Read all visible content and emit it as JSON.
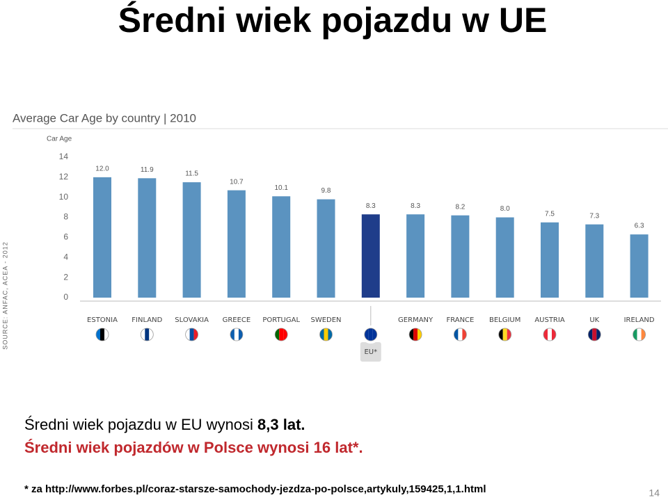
{
  "slide_title": "Średni wiek pojazdu w UE",
  "chart_data": {
    "type": "bar",
    "title": "Average Car Age by country | 2010",
    "y_label": "Car Age",
    "source": "SOURCE: ANFAC, ACEA - 2012",
    "categories": [
      "ESTONIA",
      "FINLAND",
      "SLOVAKIA",
      "GREECE",
      "PORTUGAL",
      "SWEDEN",
      "EU*",
      "GERMANY",
      "FRANCE",
      "BELGIUM",
      "AUSTRIA",
      "UK",
      "IRELAND"
    ],
    "values": [
      12.0,
      11.9,
      11.5,
      10.7,
      10.1,
      9.8,
      8.3,
      8.3,
      8.2,
      8.0,
      7.5,
      7.3,
      6.3
    ],
    "value_labels": [
      "12.0",
      "11.9",
      "11.5",
      "10.7",
      "10.1",
      "9.8",
      "8.3",
      "8.3",
      "8.2",
      "8.0",
      "7.5",
      "7.3",
      "6.3"
    ],
    "colors": [
      "#5b93c0",
      "#5b93c0",
      "#5b93c0",
      "#5b93c0",
      "#5b93c0",
      "#5b93c0",
      "#1f3d8a",
      "#5b93c0",
      "#5b93c0",
      "#5b93c0",
      "#5b93c0",
      "#5b93c0",
      "#5b93c0"
    ],
    "ylim": [
      0,
      14
    ],
    "yticks": [
      0,
      2,
      4,
      6,
      8,
      10,
      12,
      14
    ]
  },
  "text": {
    "line1": "Średni wiek pojazdu w EU wynosi ",
    "line1_bold": "8,3 lat.",
    "line2": "Średni wiek pojazdów w Polsce wynosi 16 lat*.",
    "footnote": "* za http://www.forbes.pl/coraz-starsze-samochody-jezdza-po-polsce,artykuly,159425,1,1.html",
    "page_number": "14"
  }
}
